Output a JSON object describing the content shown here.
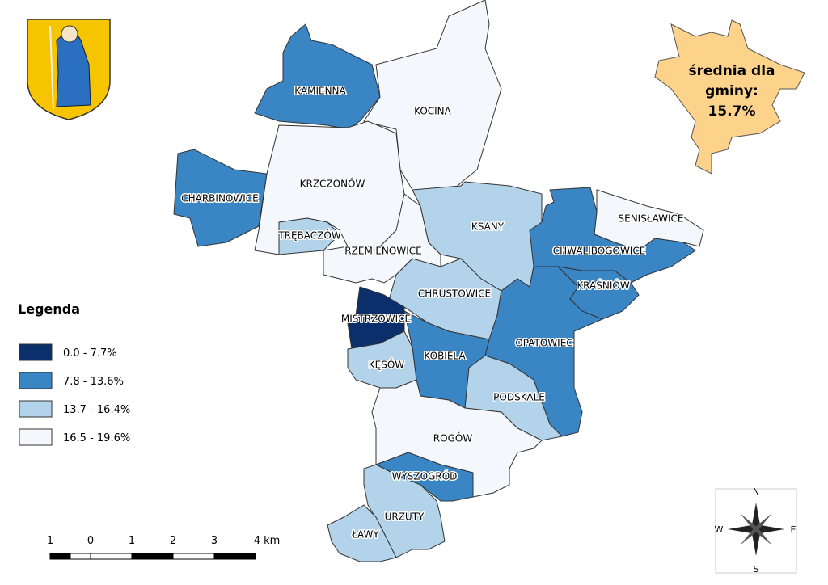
{
  "regions": [
    "KAMIENNA",
    "KOCINA",
    "KRZCZONÓW",
    "CHARBINOWICE",
    "TRĘBACZÓW",
    "RZEMIENOWICE",
    "KSANY",
    "SENISŁAWICE",
    "CHWALIBOGOWICE",
    "CHRUSTOWICE",
    "KRAŚNIÓW",
    "MISTRZOWICE",
    "OPATOWIEC",
    "KOBIELA",
    "KĘSÓW",
    "PODSKALE",
    "ROGÓW",
    "WYSZOGRÓD",
    "URZUTY",
    "ŁAWY"
  ],
  "summary": [
    "średnia dla",
    "gminy:",
    "15.7%"
  ],
  "legend": {
    "title": "Legenda",
    "items": [
      "0.0 - 7.7%",
      "7.8 - 13.6%",
      "13.7 - 16.4%",
      "16.5 - 19.6%"
    ]
  },
  "scale_bar": [
    "1",
    "0",
    "1",
    "2",
    "3",
    "4 km"
  ],
  "compass": [
    "N",
    "W",
    "E",
    "S"
  ]
}
